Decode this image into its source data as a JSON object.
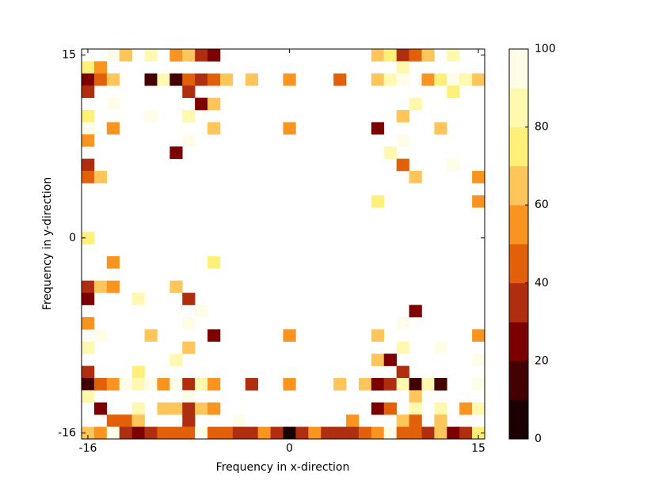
{
  "chart_data": {
    "type": "heatmap",
    "xlabel": "Frequency in x-direction",
    "ylabel": "Frequency in y-direction",
    "xlim": [
      -16.5,
      15.5
    ],
    "ylim": [
      -16.5,
      15.5
    ],
    "xticks": [
      -16,
      0,
      15
    ],
    "yticks": [
      -16,
      0,
      15
    ],
    "zlim": [
      0,
      100
    ],
    "zticks": [
      0,
      20,
      40,
      60,
      80,
      100
    ],
    "colormap": [
      "#1a0000",
      "#440000",
      "#7d0000",
      "#b02e10",
      "#e2600a",
      "#f99420",
      "#fdc55a",
      "#fff07a",
      "#fff8b0",
      "#fffde8"
    ],
    "rows": [
      {
        "y": 15,
        "x": [
          -14,
          -13,
          -11,
          -9,
          -8,
          -7,
          -6,
          7,
          8,
          9,
          10,
          11,
          13
        ],
        "values": [
          90,
          65,
          85,
          55,
          65,
          35,
          25,
          65,
          70,
          35,
          45,
          65,
          85
        ]
      },
      {
        "y": 14,
        "x": [
          -16,
          -15,
          9
        ],
        "values": [
          75,
          50,
          85
        ]
      },
      {
        "y": 13,
        "x": [
          -16,
          -15,
          -14,
          -11,
          -10,
          -9,
          -8,
          -7,
          -6,
          -5,
          -3,
          0,
          4,
          7,
          8,
          9,
          11,
          12,
          13,
          14,
          15
        ],
        "values": [
          25,
          45,
          65,
          15,
          80,
          15,
          45,
          35,
          45,
          65,
          60,
          50,
          45,
          60,
          80,
          95,
          55,
          75,
          90,
          85,
          60
        ]
      },
      {
        "y": 12,
        "x": [
          -16,
          -8,
          13
        ],
        "values": [
          35,
          35,
          75
        ]
      },
      {
        "y": 11,
        "x": [
          -14,
          -7,
          -6,
          10
        ],
        "values": [
          90,
          25,
          65,
          80
        ]
      },
      {
        "y": 10,
        "x": [
          -16,
          -11,
          -8,
          9
        ],
        "values": [
          75,
          90,
          80,
          65
        ]
      },
      {
        "y": 9,
        "x": [
          -16,
          -14,
          -6,
          0,
          7,
          12
        ],
        "values": [
          95,
          55,
          65,
          55,
          25,
          65
        ]
      },
      {
        "y": 8,
        "x": [
          -16,
          -8,
          9
        ],
        "values": [
          55,
          90,
          95
        ]
      },
      {
        "y": 7,
        "x": [
          -9,
          8
        ],
        "values": [
          25,
          80
        ]
      },
      {
        "y": 6,
        "x": [
          -16,
          9,
          13
        ],
        "values": [
          35,
          40,
          90
        ]
      },
      {
        "y": 5,
        "x": [
          -16,
          -15,
          10,
          15
        ],
        "values": [
          45,
          60,
          65,
          55
        ]
      },
      {
        "y": 3,
        "x": [
          7,
          15
        ],
        "values": [
          70,
          55
        ]
      },
      {
        "y": 0,
        "x": [
          -16
        ],
        "values": [
          75
        ]
      },
      {
        "y": -2,
        "x": [
          -14,
          -6
        ],
        "values": [
          55,
          70
        ]
      },
      {
        "y": -4,
        "x": [
          -16,
          -15,
          -14,
          -9
        ],
        "values": [
          35,
          65,
          55,
          65
        ]
      },
      {
        "y": -5,
        "x": [
          -16,
          -12,
          -8
        ],
        "values": [
          25,
          85,
          35
        ]
      },
      {
        "y": -6,
        "x": [
          -7,
          10
        ],
        "values": [
          90,
          25
        ]
      },
      {
        "y": -7,
        "x": [
          -16,
          -8,
          9
        ],
        "values": [
          55,
          95,
          90
        ]
      },
      {
        "y": -8,
        "x": [
          -15,
          -11,
          -6,
          0,
          7,
          15
        ],
        "values": [
          90,
          65,
          25,
          55,
          65,
          55
        ]
      },
      {
        "y": -9,
        "x": [
          -16,
          -8,
          9,
          12
        ],
        "values": [
          80,
          65,
          80,
          90
        ]
      },
      {
        "y": -10,
        "x": [
          -9,
          7,
          8,
          15
        ],
        "values": [
          80,
          65,
          25,
          90
        ]
      },
      {
        "y": -11,
        "x": [
          -16,
          -12,
          9
        ],
        "values": [
          35,
          75,
          35
        ]
      },
      {
        "y": -12,
        "x": [
          -16,
          -15,
          -14,
          -13,
          -12,
          -11,
          -10,
          -9,
          -8,
          -7,
          -6,
          -3,
          0,
          4,
          6,
          7,
          8,
          9,
          10,
          11,
          12,
          15
        ],
        "values": [
          15,
          40,
          55,
          95,
          80,
          95,
          55,
          90,
          35,
          85,
          55,
          35,
          50,
          60,
          65,
          25,
          35,
          80,
          15,
          80,
          15,
          90
        ]
      },
      {
        "y": -13,
        "x": [
          -16,
          -8,
          10
        ],
        "values": [
          80,
          90,
          65
        ]
      },
      {
        "y": -14,
        "x": [
          -15,
          -12,
          -10,
          -9,
          -8,
          -7,
          -6,
          7,
          8,
          10,
          12,
          14,
          15
        ],
        "values": [
          25,
          80,
          65,
          60,
          35,
          65,
          55,
          25,
          40,
          80,
          85,
          55,
          80
        ]
      },
      {
        "y": -15,
        "x": [
          -14,
          -13,
          -12,
          -8,
          -4,
          5,
          9,
          10,
          12
        ],
        "values": [
          40,
          45,
          65,
          35,
          95,
          50,
          60,
          45,
          65
        ]
      },
      {
        "y": -16,
        "x": [
          -16,
          -15,
          -14,
          -13,
          -12,
          -11,
          -10,
          -9,
          -8,
          -7,
          -6,
          -5,
          -4,
          -3,
          -2,
          -1,
          0,
          1,
          2,
          3,
          4,
          5,
          6,
          7,
          8,
          9,
          10,
          11,
          12,
          13,
          14,
          15
        ],
        "values": [
          65,
          55,
          90,
          35,
          25,
          35,
          45,
          45,
          40,
          90,
          45,
          40,
          30,
          30,
          55,
          30,
          5,
          35,
          55,
          30,
          30,
          35,
          45,
          55,
          90,
          45,
          45,
          35,
          60,
          25,
          35,
          75
        ]
      }
    ]
  }
}
